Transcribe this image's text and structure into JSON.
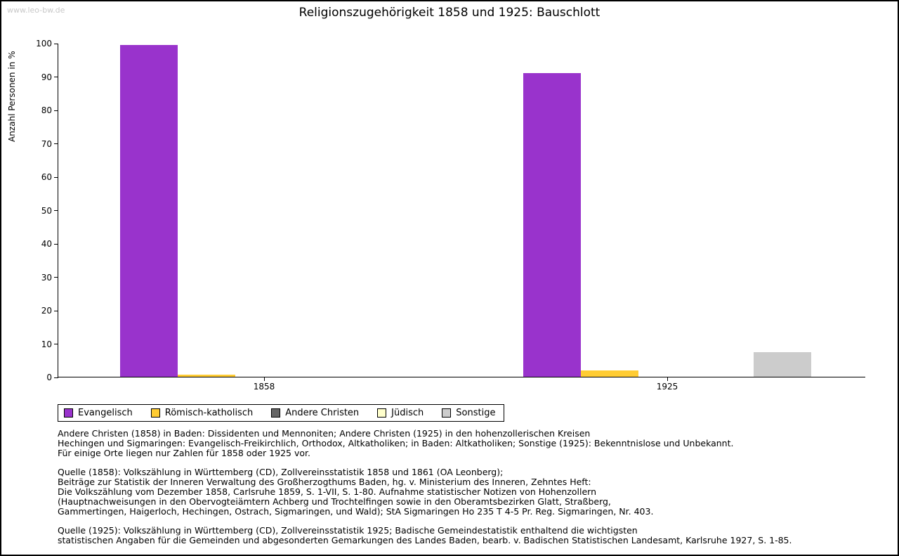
{
  "watermark": "www.leo-bw.de",
  "title": "Religionszugehörigkeit 1858 und 1925: Bauschlott",
  "chart_data": {
    "type": "bar",
    "title": "Religionszugehörigkeit 1858 und 1925: Bauschlott",
    "xlabel": "",
    "ylabel": "Anzahl Personen in %",
    "ylim": [
      0,
      100
    ],
    "ytick_step": 10,
    "grid": false,
    "legend_position": "bottom",
    "categories": [
      "1858",
      "1925"
    ],
    "series": [
      {
        "name": "Evangelisch",
        "color": "#9933cc",
        "values": [
          99.3,
          91.0
        ]
      },
      {
        "name": "Römisch-katholisch",
        "color": "#ffcc33",
        "values": [
          0.7,
          1.8
        ]
      },
      {
        "name": "Andere Christen",
        "color": "#666666",
        "values": [
          0,
          0
        ]
      },
      {
        "name": "Jüdisch",
        "color": "#ffffcc",
        "values": [
          0,
          0
        ]
      },
      {
        "name": "Sonstige",
        "color": "#cccccc",
        "values": [
          0,
          7.3
        ]
      }
    ]
  },
  "footnotes": [
    {
      "lines": [
        "Andere Christen (1858) in Baden: Dissidenten und Mennoniten; Andere Christen (1925) in den hohenzollerischen Kreisen",
        "Hechingen und Sigmaringen: Evangelisch-Freikirchlich, Orthodox, Altkatholiken; in Baden: Altkatholiken; Sonstige (1925): Bekenntnislose und Unbekannt.",
        "Für einige Orte liegen nur Zahlen für 1858 oder 1925 vor."
      ]
    },
    {
      "lines": [
        "Quelle (1858): Volkszählung in Württemberg (CD), Zollvereinsstatistik 1858 und 1861 (OA Leonberg);",
        "Beiträge zur Statistik der Inneren Verwaltung des Großherzogthums Baden, hg. v. Ministerium des Inneren, Zehntes Heft:",
        "Die Volkszählung vom Dezember 1858, Carlsruhe 1859, S. 1-VII, S. 1-80. Aufnahme statistischer Notizen von Hohenzollern",
        "(Hauptnachweisungen in den Obervogteiämtern Achberg und Trochtelfingen sowie in den Oberamtsbezirken Glatt, Straßberg,",
        "Gammertingen, Haigerloch, Hechingen, Ostrach, Sigmaringen, und Wald); StA Sigmaringen Ho 235 T 4-5 Pr. Reg. Sigmaringen, Nr. 403."
      ]
    },
    {
      "lines": [
        "Quelle (1925): Volkszählung in Württemberg (CD), Zollvereinsstatistik 1925; Badische Gemeindestatistik enthaltend die wichtigsten",
        "statistischen Angaben für die Gemeinden und abgesonderten Gemarkungen des Landes Baden, bearb. v. Badischen Statistischen Landesamt, Karlsruhe 1927, S. 1-85."
      ]
    }
  ]
}
